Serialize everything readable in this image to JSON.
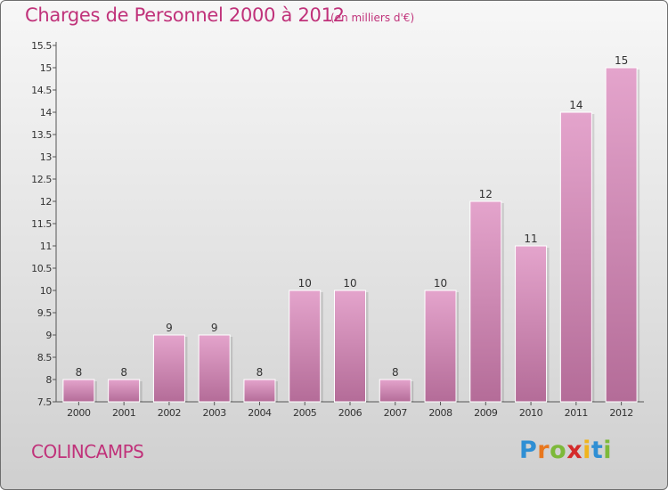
{
  "header": {
    "title": "Charges de Personnel 2000 à 2012",
    "subtitle": "(en milliers d'€)"
  },
  "footer": {
    "commune": "COLINCAMPS",
    "logo_letters": [
      "P",
      "r",
      "o",
      "x",
      "i",
      "t",
      "i"
    ],
    "logo_colors": [
      "#2f8fd4",
      "#e8771e",
      "#7db93a",
      "#d42a2a",
      "#f0b41d",
      "#2f8fd4",
      "#7db93a"
    ]
  },
  "colors": {
    "bar_top": "#e4a4cc",
    "bar_bottom": "#b46c98",
    "text_accent": "#c0327a"
  },
  "chart_data": {
    "type": "bar",
    "categories": [
      "2000",
      "2001",
      "2002",
      "2003",
      "2004",
      "2005",
      "2006",
      "2007",
      "2008",
      "2009",
      "2010",
      "2011",
      "2012"
    ],
    "values": [
      8,
      8,
      9,
      9,
      8,
      10,
      10,
      8,
      10,
      12,
      11,
      14,
      15
    ],
    "value_labels": [
      "8",
      "8",
      "9",
      "9",
      "8",
      "10",
      "10",
      "8",
      "10",
      "12",
      "11",
      "14",
      "15"
    ],
    "title": "Charges de Personnel 2000 à 2012",
    "xlabel": "",
    "ylabel": "",
    "ylim": [
      7.5,
      15.5
    ],
    "yticks": [
      "7.5",
      "8",
      "8.5",
      "9",
      "9.5",
      "10",
      "10.5",
      "11",
      "11.5",
      "12",
      "12.5",
      "13",
      "13.5",
      "14",
      "14.5",
      "15",
      "15.5"
    ],
    "grid": false,
    "legend": "none"
  }
}
